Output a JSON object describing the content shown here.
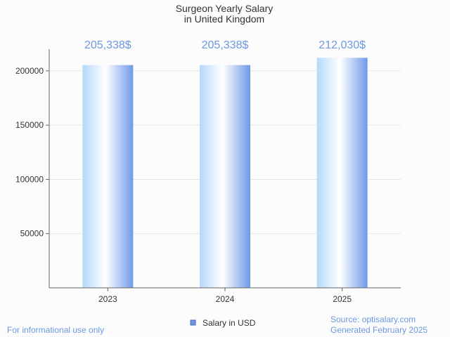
{
  "chart_data": {
    "type": "bar",
    "title": [
      "Surgeon Yearly Salary",
      "in United Kingdom"
    ],
    "categories": [
      "2023",
      "2024",
      "2025"
    ],
    "series": [
      {
        "name": "Salary in USD",
        "values": [
          205338,
          205338,
          212030
        ]
      }
    ],
    "data_labels": [
      "205,338$",
      "205,338$",
      "212,030$"
    ],
    "y_ticks": [
      50000,
      100000,
      150000,
      200000
    ],
    "ylim": [
      0,
      220000
    ],
    "grid": true,
    "legend_position": "bottom"
  },
  "footer": {
    "left_note": "For informational use only",
    "source": "Source: optisalary.com",
    "generated": "Generated February 2025"
  },
  "colors": {
    "accent": "#6b98e0",
    "bar_light": "#b4d8fc",
    "bar_mid": "#ffffff",
    "bar_dark": "#6f9ae8",
    "axis": "#666666",
    "grid": "#e6e6e6",
    "text": "#333333",
    "legend_swatch": "#6b98e0"
  }
}
